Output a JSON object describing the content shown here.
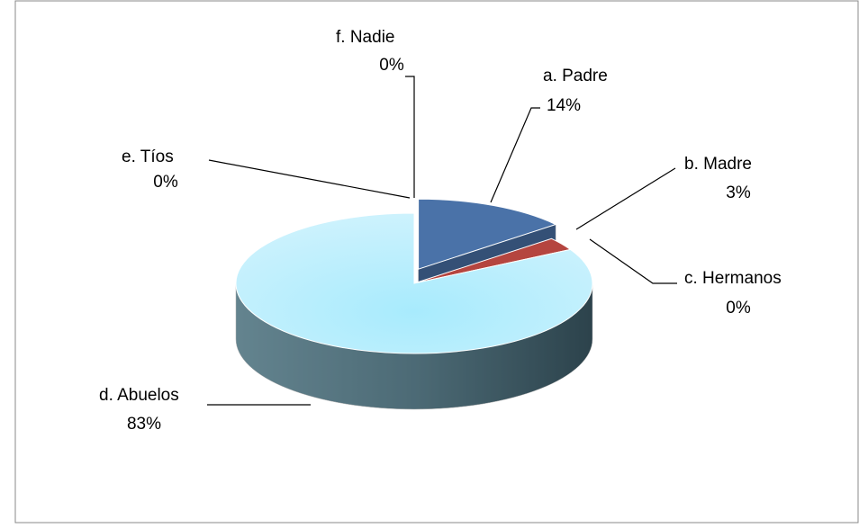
{
  "chart_data": {
    "type": "pie",
    "categories": [
      "a. Padre",
      "b. Madre",
      "c. Hermanos",
      "d. Abuelos",
      "e. Tíos",
      "f. Nadie"
    ],
    "values": [
      14,
      3,
      0,
      83,
      0,
      0
    ],
    "value_labels": [
      "14%",
      "3%",
      "0%",
      "83%",
      "0%",
      "0%"
    ],
    "colors": [
      "#4a72a8",
      "#b5453f",
      "#7f9a3e",
      "#aee9fb",
      "#7a5fa0",
      "#3fa4bf"
    ]
  }
}
